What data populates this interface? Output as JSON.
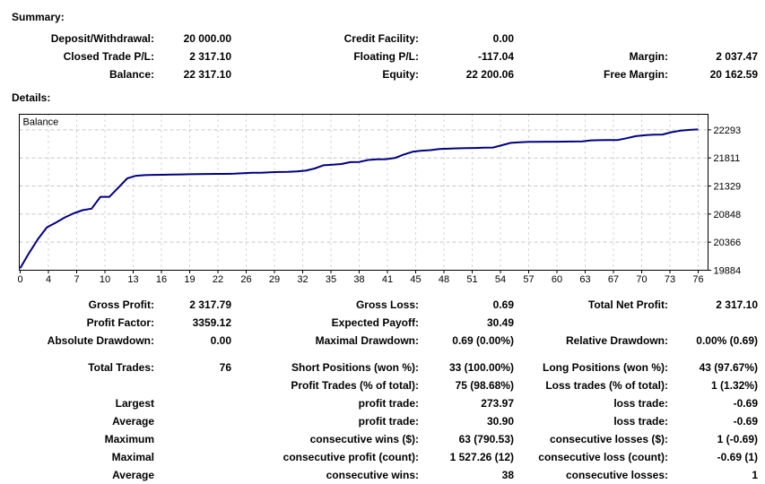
{
  "summary": {
    "heading": "Summary:",
    "rows": [
      {
        "cells": [
          "Deposit/Withdrawal:",
          "20 000.00",
          "Credit Facility:",
          "0.00",
          "",
          ""
        ]
      },
      {
        "cells": [
          "Closed Trade P/L:",
          "2 317.10",
          "Floating P/L:",
          "-117.04",
          "Margin:",
          "2 037.47"
        ]
      },
      {
        "cells": [
          "Balance:",
          "22 317.10",
          "Equity:",
          "22 200.06",
          "Free Margin:",
          "20 162.59"
        ]
      }
    ]
  },
  "details": {
    "heading": "Details:",
    "rows": [
      {
        "cells": [
          "Gross Profit:",
          "2 317.79",
          "Gross Loss:",
          "0.69",
          "Total Net Profit:",
          "2 317.10"
        ]
      },
      {
        "cells": [
          "Profit Factor:",
          "3359.12",
          "Expected Payoff:",
          "30.49",
          "",
          ""
        ]
      },
      {
        "cells": [
          "Absolute Drawdown:",
          "0.00",
          "Maximal Drawdown:",
          "0.69 (0.00%)",
          "Relative Drawdown:",
          "0.00% (0.69)"
        ]
      },
      {
        "cells": [
          "Total Trades:",
          "76",
          "Short Positions (won %):",
          "33 (100.00%)",
          "Long Positions (won %):",
          "43 (97.67%)"
        ],
        "gap": true
      },
      {
        "cells": [
          "",
          "",
          "Profit Trades (% of total):",
          "75 (98.68%)",
          "Loss trades (% of total):",
          "1 (1.32%)"
        ]
      },
      {
        "cells": [
          "Largest",
          "",
          "profit trade:",
          "273.97",
          "loss trade:",
          "-0.69"
        ]
      },
      {
        "cells": [
          "Average",
          "",
          "profit trade:",
          "30.90",
          "loss trade:",
          "-0.69"
        ]
      },
      {
        "cells": [
          "Maximum",
          "",
          "consecutive wins ($):",
          "63 (790.53)",
          "consecutive losses ($):",
          "1 (-0.69)"
        ]
      },
      {
        "cells": [
          "Maximal",
          "",
          "consecutive profit (count):",
          "1 527.26 (12)",
          "consecutive loss (count):",
          "-0.69 (1)"
        ]
      },
      {
        "cells": [
          "Average",
          "",
          "consecutive wins:",
          "38",
          "consecutive losses:",
          "1"
        ]
      }
    ]
  },
  "chart_data": {
    "type": "line",
    "title": "Balance",
    "xlabel": "",
    "ylabel": "",
    "legend_position": "top-left-inside",
    "grid": true,
    "line_color": "#000080",
    "grid_color": "#c6c6c6",
    "frame_color": "#000000",
    "x_ticks": [
      0,
      4,
      7,
      10,
      13,
      16,
      19,
      22,
      26,
      29,
      32,
      35,
      38,
      41,
      45,
      48,
      51,
      54,
      57,
      60,
      63,
      67,
      70,
      73,
      76
    ],
    "y_ticks": [
      19884,
      20366,
      20848,
      21329,
      21811,
      22293
    ],
    "xlim": [
      0,
      76
    ],
    "ylim": [
      19884,
      22560
    ],
    "balance": [
      19920,
      20180,
      20420,
      20620,
      20700,
      20790,
      20860,
      20915,
      20940,
      21143,
      21143,
      21300,
      21460,
      21505,
      21515,
      21520,
      21522,
      21525,
      21528,
      21531,
      21533,
      21535,
      21537,
      21538,
      21540,
      21548,
      21555,
      21558,
      21565,
      21570,
      21572,
      21580,
      21592,
      21630,
      21685,
      21696,
      21707,
      21738,
      21742,
      21775,
      21788,
      21790,
      21810,
      21870,
      21917,
      21935,
      21945,
      21965,
      21970,
      21975,
      21978,
      21982,
      21986,
      21990,
      22030,
      22070,
      22080,
      22087,
      22088,
      22089,
      22090,
      22091,
      22092,
      22095,
      22112,
      22115,
      22117,
      22118,
      22150,
      22185,
      22200,
      22210,
      22212,
      22252,
      22278,
      22293,
      22300
    ]
  }
}
